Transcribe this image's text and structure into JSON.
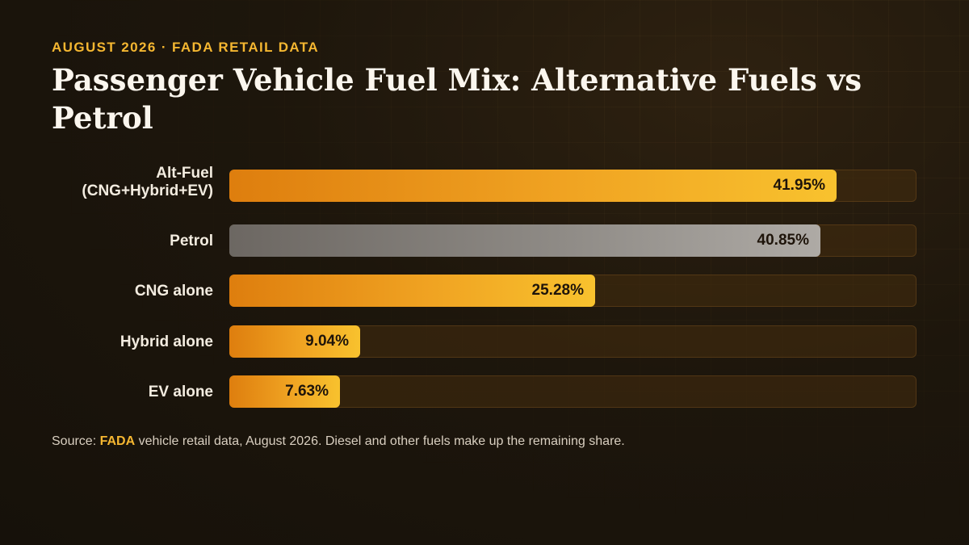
{
  "header": {
    "kicker": "AUGUST 2026 · FADA RETAIL DATA",
    "title": "Passenger Vehicle Fuel Mix: Alternative Fuels vs Petrol"
  },
  "colors": {
    "accent": "#f5b731",
    "alt_fuel_bar": "#f0a322",
    "petrol_bar": "#8e8a85",
    "track": "#3a2812"
  },
  "chart_data": {
    "type": "bar",
    "orientation": "horizontal",
    "title": "Passenger Vehicle Fuel Mix: Alternative Fuels vs Petrol",
    "unit": "%",
    "xlim": [
      0,
      47.5
    ],
    "grid": false,
    "categories": [
      "Alt-Fuel (CNG+Hybrid+EV)",
      "Petrol",
      "CNG alone",
      "Hybrid alone",
      "EV alone"
    ],
    "category_lines": [
      [
        "Alt-Fuel",
        "(CNG+Hybrid+EV)"
      ],
      [
        "Petrol"
      ],
      [
        "CNG alone"
      ],
      [
        "Hybrid alone"
      ],
      [
        "EV alone"
      ]
    ],
    "values": [
      41.95,
      40.85,
      25.28,
      9.04,
      7.63
    ],
    "value_labels": [
      "41.95%",
      "40.85%",
      "25.28%",
      "9.04%",
      "7.63%"
    ],
    "bar_colors": [
      "alt",
      "petrol",
      "alt",
      "alt",
      "alt"
    ]
  },
  "source": {
    "prefix": "Source: ",
    "highlight": "FADA",
    "text": " vehicle retail data, August 2026. Diesel and other fuels make up the remaining share."
  }
}
